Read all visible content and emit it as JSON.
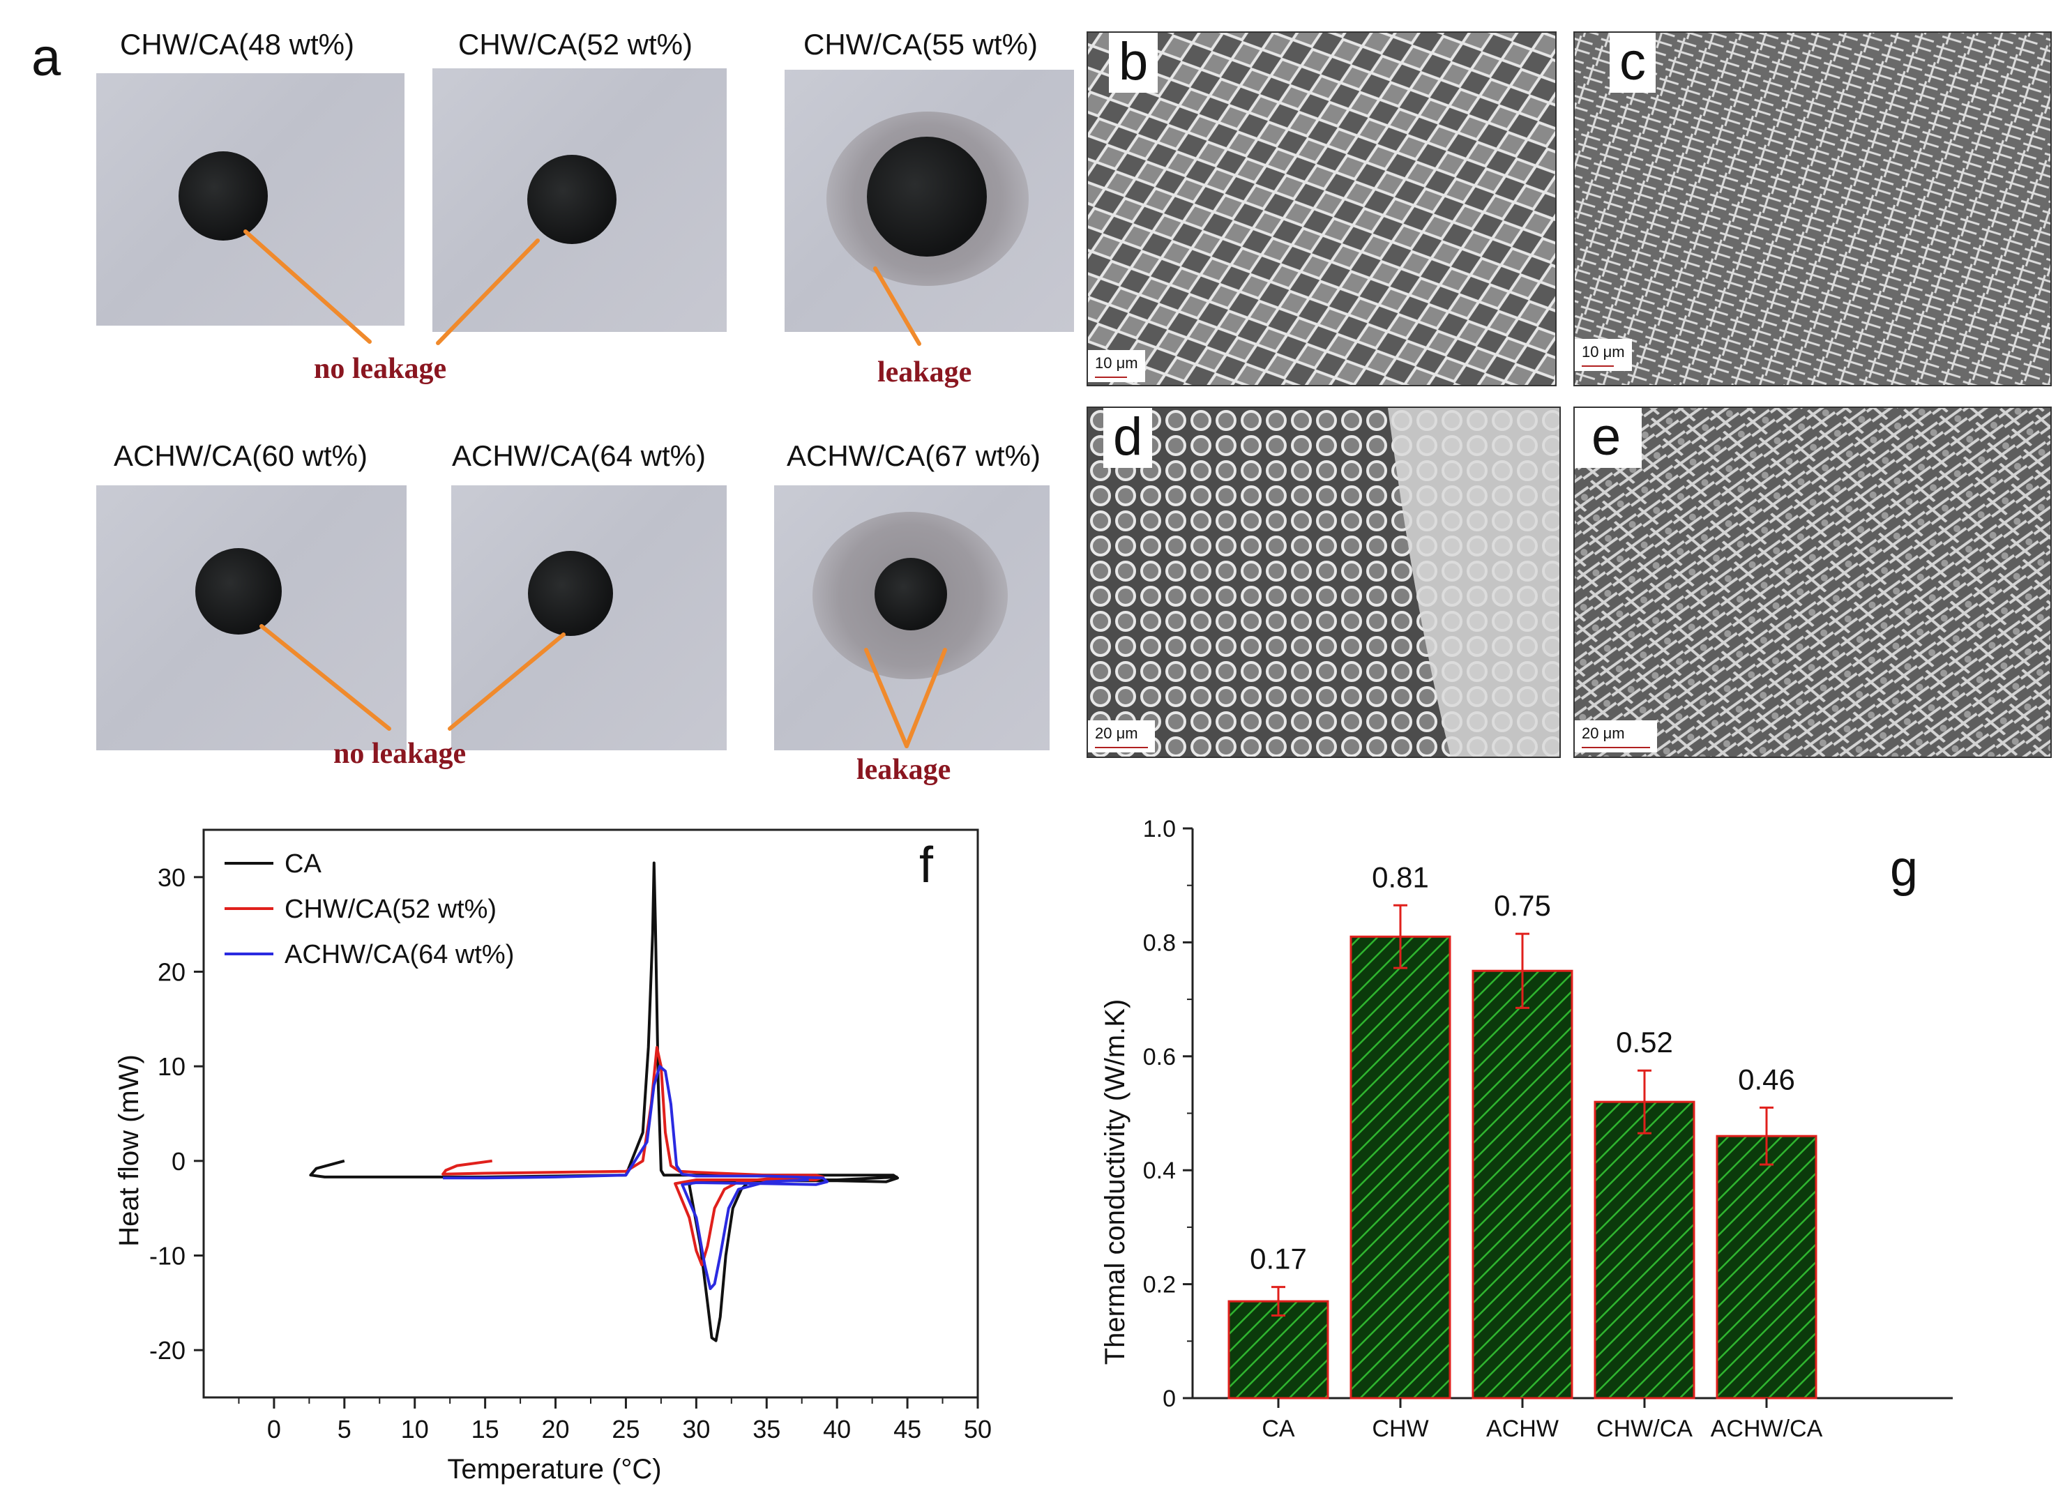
{
  "panel_a": {
    "letter": "a",
    "row1": {
      "captions": [
        "CHW/CA(48 wt%)",
        "CHW/CA(52 wt%)",
        "CHW/CA(55 wt%)"
      ],
      "no_leak_label": "no leakage",
      "leak_label": "leakage"
    },
    "row2": {
      "captions": [
        "ACHW/CA(60 wt%)",
        "ACHW/CA(64 wt%)",
        "ACHW/CA(67 wt%)"
      ],
      "no_leak_label": "no leakage",
      "leak_label": "leakage"
    },
    "colors": {
      "pointer": "#f08a2c",
      "label": "#8a1620"
    }
  },
  "sem_panels": [
    {
      "letter": "b",
      "scale": "10 μm"
    },
    {
      "letter": "c",
      "scale": "10 μm"
    },
    {
      "letter": "d",
      "scale": "20 μm"
    },
    {
      "letter": "e",
      "scale": "20 μm"
    }
  ],
  "chart_data": [
    {
      "panel": "f",
      "type": "line",
      "xlabel": "Temperature (°C)",
      "ylabel": "Heat flow (mW)",
      "xlim": [
        -5,
        50
      ],
      "ylim": [
        -25,
        35
      ],
      "xticks": [
        0,
        5,
        10,
        15,
        20,
        25,
        30,
        35,
        40,
        45,
        50
      ],
      "yticks": [
        -20,
        -10,
        0,
        10,
        20,
        30
      ],
      "legend_position": "top-left",
      "series": [
        {
          "name": "CA",
          "color": "#111111",
          "x": [
            5,
            3,
            2.6,
            3.6,
            15,
            25,
            26.2,
            26.6,
            26.9,
            27,
            27.1,
            27.3,
            27.5,
            27.7,
            30,
            40,
            44,
            44.3,
            43.5,
            40,
            30,
            29.5,
            30.3,
            30.8,
            31.1,
            31.4,
            31.7,
            32.1,
            32.6,
            33.2,
            33.8,
            35,
            40,
            44.3
          ],
          "y": [
            0,
            -0.8,
            -1.5,
            -1.7,
            -1.7,
            -1.5,
            3,
            12,
            24,
            31.5,
            25,
            8,
            -1,
            -1.5,
            -1.5,
            -1.5,
            -1.5,
            -1.8,
            -2.2,
            -2.1,
            -2.1,
            -2.5,
            -9,
            -15,
            -18.7,
            -19,
            -16.5,
            -10,
            -5,
            -3,
            -2.1,
            -2,
            -2,
            -1.7
          ]
        },
        {
          "name": "CHW/CA(52 wt%)",
          "color": "#e0201c",
          "x": [
            15.5,
            13,
            12.2,
            12,
            15,
            20,
            25,
            26.2,
            26.8,
            27.2,
            27.5,
            27.8,
            28.2,
            28.8,
            30,
            35,
            38.5,
            39,
            38.5,
            35,
            30,
            28.5,
            29.5,
            30,
            30.4,
            30.8,
            31.3,
            32,
            33,
            35,
            38
          ],
          "y": [
            0,
            -0.5,
            -1,
            -1.4,
            -1.3,
            -1.2,
            -1.1,
            0,
            6,
            12,
            10,
            3,
            -0.5,
            -1.1,
            -1.2,
            -1.5,
            -1.5,
            -1.7,
            -2,
            -2,
            -2,
            -2.4,
            -6,
            -9.5,
            -11,
            -9,
            -5,
            -3,
            -2.2,
            -1.9,
            -1.8
          ]
        },
        {
          "name": "ACHW/CA(64 wt%)",
          "color": "#2a2ae0",
          "x": [
            12,
            15,
            20,
            25,
            26.5,
            27,
            27.4,
            27.8,
            28.2,
            28.6,
            29,
            30,
            35,
            39,
            39.3,
            38.5,
            35,
            30,
            29,
            30,
            30.6,
            31,
            31.3,
            31.7,
            32.3,
            33,
            35,
            38
          ],
          "y": [
            -1.8,
            -1.8,
            -1.7,
            -1.5,
            2,
            8,
            10,
            9.5,
            6,
            -0.5,
            -1.4,
            -1.6,
            -1.6,
            -1.8,
            -2.2,
            -2.5,
            -2.4,
            -2.3,
            -2.5,
            -6,
            -11,
            -13.5,
            -13,
            -10,
            -5,
            -3,
            -2.2,
            -2
          ]
        }
      ]
    },
    {
      "panel": "g",
      "type": "bar",
      "xlabel": "",
      "ylabel": "Thermal conductivity (W/m.K)",
      "ylim": [
        0,
        1.0
      ],
      "yticks": [
        0,
        0.2,
        0.4,
        0.6,
        0.8,
        1.0
      ],
      "categories": [
        "CA",
        "CHW",
        "ACHW",
        "CHW/CA",
        "ACHW/CA"
      ],
      "values": [
        0.17,
        0.81,
        0.75,
        0.52,
        0.46
      ],
      "errors": [
        0.025,
        0.055,
        0.065,
        0.055,
        0.05
      ],
      "data_labels": [
        "0.17",
        "0.81",
        "0.75",
        "0.52",
        "0.46"
      ],
      "colors": {
        "fill": "#0b3a0b",
        "hatch": "#2fb52f",
        "edge": "#e0201c"
      }
    }
  ]
}
